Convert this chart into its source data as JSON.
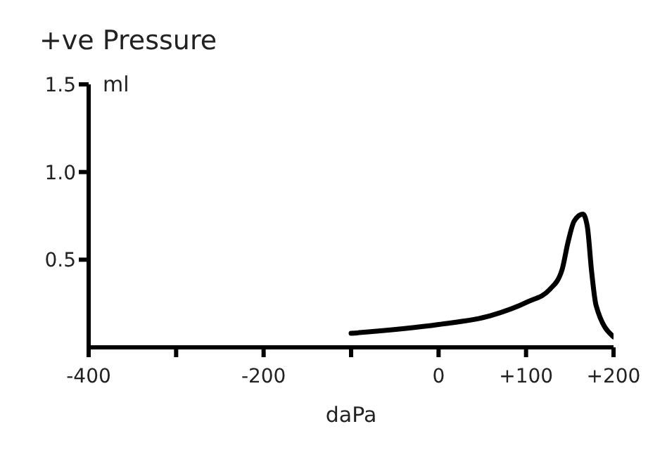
{
  "chart_data": {
    "type": "line",
    "title": "+ve Pressure",
    "xlabel": "daPa",
    "ylabel": "ml",
    "x": [
      -100,
      0,
      59,
      102,
      127,
      141,
      148,
      155,
      165,
      170,
      175,
      180,
      200
    ],
    "series": [
      {
        "color": "#000000",
        "values": [
          0.08,
          0.13,
          0.18,
          0.26,
          0.33,
          0.44,
          0.6,
          0.72,
          0.76,
          0.69,
          0.43,
          0.24,
          0.06
        ]
      }
    ],
    "xlim": [
      -400,
      200
    ],
    "xticks": [
      -400,
      {
        "value": -300,
        "label": null
      },
      -200,
      {
        "value": -100,
        "label": null
      },
      0,
      {
        "value": 100,
        "label": "+100"
      },
      {
        "value": 200,
        "label": "+200"
      }
    ],
    "ylim": [
      0,
      1.5
    ],
    "yticks": [
      {
        "value": 0.5,
        "label": "0.5"
      },
      {
        "value": 1,
        "label": "1.0"
      },
      {
        "value": 1.5,
        "label": "1.5"
      }
    ],
    "grid": false,
    "legend": false,
    "marker": "none",
    "line_style": "solid"
  }
}
